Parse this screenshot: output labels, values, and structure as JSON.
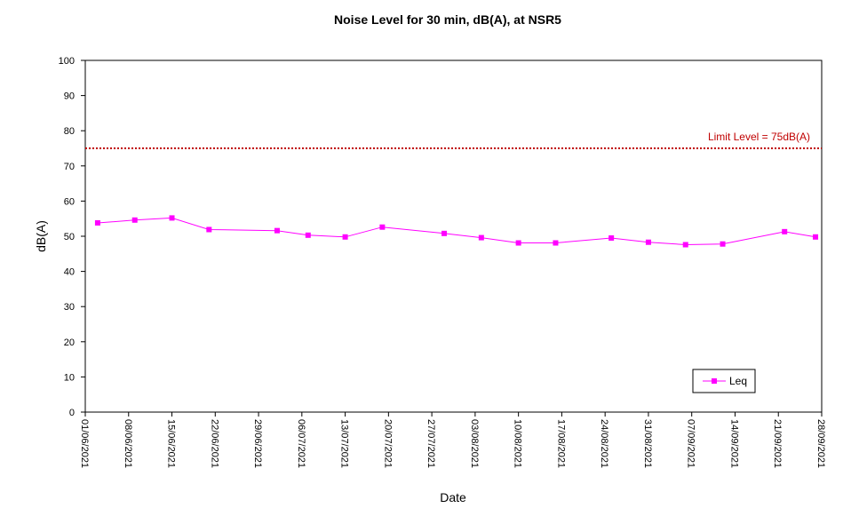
{
  "chart_data": {
    "type": "line",
    "title": "Noise Level for 30 min, dB(A), at NSR5",
    "xlabel": "Date",
    "ylabel": "dB(A)",
    "ylim": [
      0,
      100
    ],
    "yticks": [
      0,
      10,
      20,
      30,
      40,
      50,
      60,
      70,
      80,
      90,
      100
    ],
    "xlim": [
      "2021-06-01",
      "2021-09-28"
    ],
    "xtick_labels": [
      "01/06/2021",
      "08/06/2021",
      "15/06/2021",
      "22/06/2021",
      "29/06/2021",
      "06/07/2021",
      "13/07/2021",
      "20/07/2021",
      "27/07/2021",
      "03/08/2021",
      "10/08/2021",
      "17/08/2021",
      "24/08/2021",
      "31/08/2021",
      "07/09/2021",
      "14/09/2021",
      "21/09/2021",
      "28/09/2021"
    ],
    "grid": false,
    "legend_position": "bottom-right",
    "series": [
      {
        "name": "Leq",
        "color": "#ff00ff",
        "marker": "square",
        "points": [
          {
            "x": "2021-06-03",
            "y": 53.8
          },
          {
            "x": "2021-06-09",
            "y": 54.6
          },
          {
            "x": "2021-06-15",
            "y": 55.2
          },
          {
            "x": "2021-06-21",
            "y": 51.9
          },
          {
            "x": "2021-07-02",
            "y": 51.6
          },
          {
            "x": "2021-07-07",
            "y": 50.3
          },
          {
            "x": "2021-07-13",
            "y": 49.8
          },
          {
            "x": "2021-07-19",
            "y": 52.6
          },
          {
            "x": "2021-07-29",
            "y": 50.8
          },
          {
            "x": "2021-08-04",
            "y": 49.6
          },
          {
            "x": "2021-08-10",
            "y": 48.1
          },
          {
            "x": "2021-08-16",
            "y": 48.1
          },
          {
            "x": "2021-08-25",
            "y": 49.5
          },
          {
            "x": "2021-08-31",
            "y": 48.3
          },
          {
            "x": "2021-09-06",
            "y": 47.6
          },
          {
            "x": "2021-09-12",
            "y": 47.8
          },
          {
            "x": "2021-09-22",
            "y": 51.3
          },
          {
            "x": "2021-09-27",
            "y": 49.8
          }
        ]
      }
    ],
    "reference_line": {
      "label": "Limit Level  = 75dB(A)",
      "y": 75,
      "color": "#c00000",
      "style": "dotted"
    }
  }
}
